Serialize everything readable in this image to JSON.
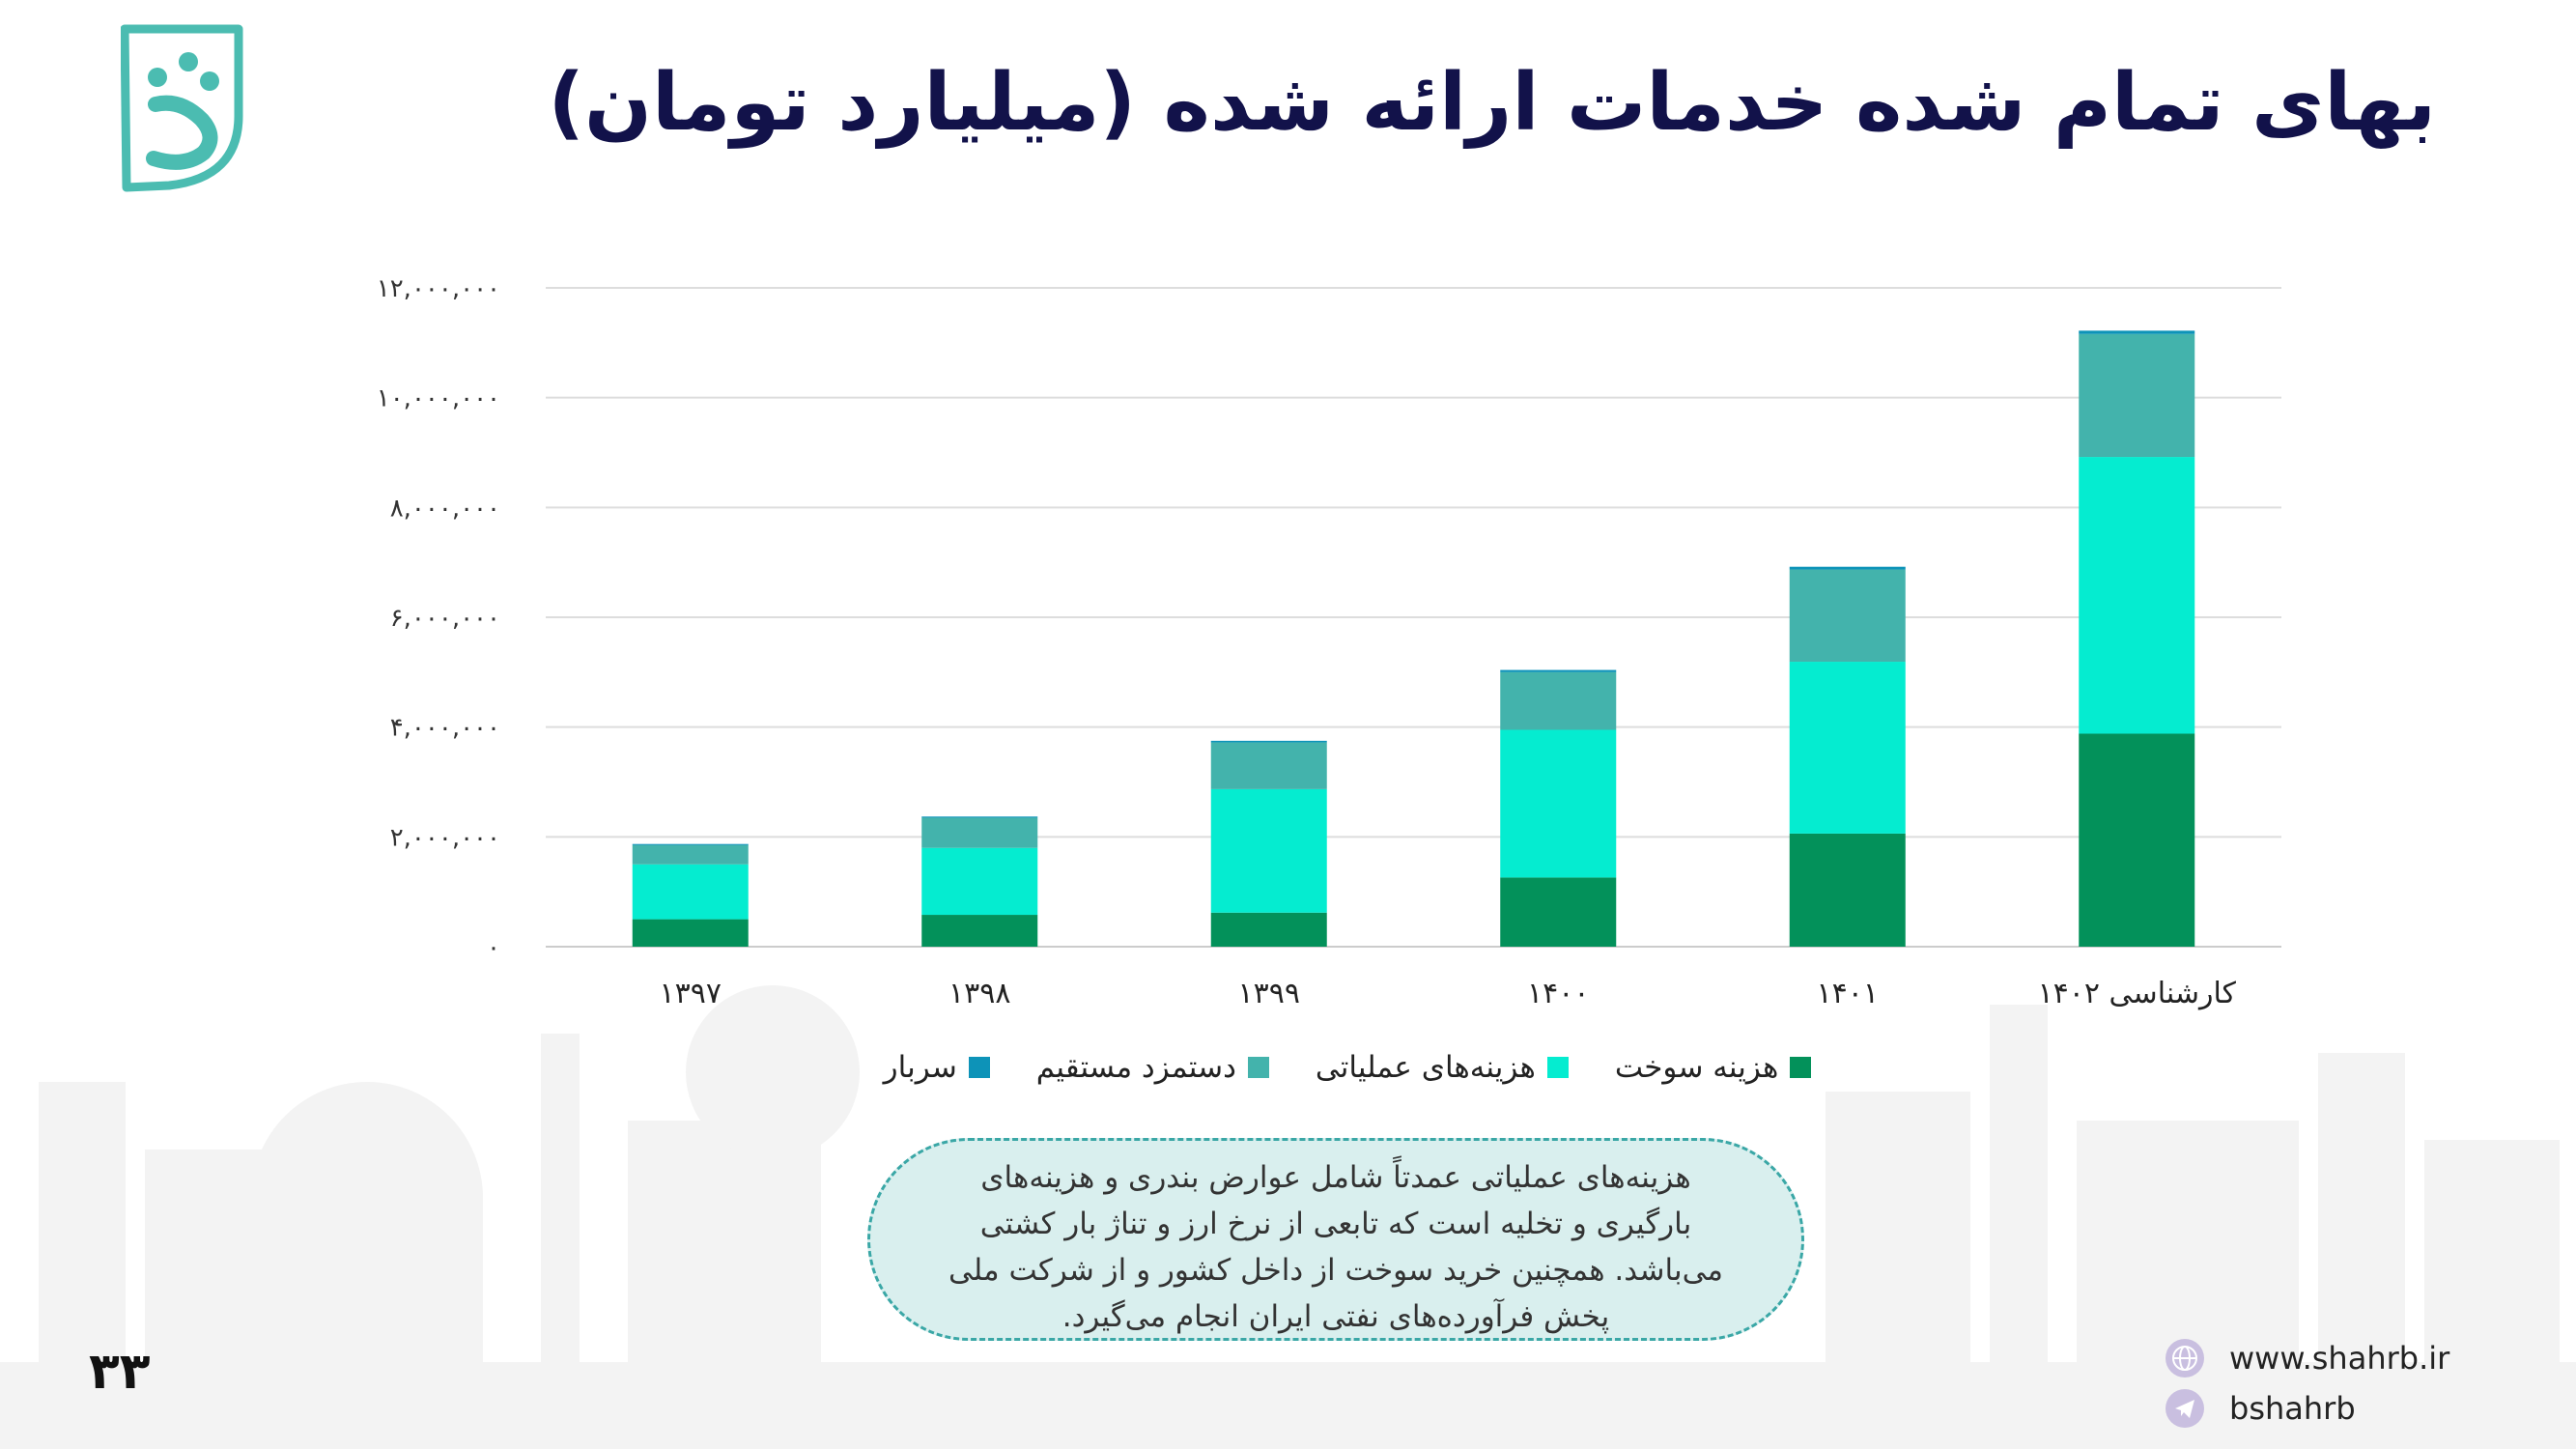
{
  "title": "بهای تمام شده خدمات ارائه شده (میلیارد تومان)",
  "chart_data": {
    "type": "bar",
    "stacked": true,
    "categories": [
      "۱۳۹۷",
      "۱۳۹۸",
      "۱۳۹۹",
      "۱۴۰۰",
      "۱۴۰۱",
      "کارشناسی ۱۴۰۲"
    ],
    "series": [
      {
        "name": "هزینه سوخت",
        "color": "#03915a",
        "values": [
          500000,
          580000,
          620000,
          1260000,
          2060000,
          3880000
        ]
      },
      {
        "name": "هزینه‌های عملیاتی",
        "color": "#05ecd0",
        "values": [
          1000000,
          1220000,
          2250000,
          2690000,
          3130000,
          5040000
        ]
      },
      {
        "name": "دستمزد مستقیم",
        "color": "#43b3ac",
        "values": [
          350000,
          550000,
          850000,
          1050000,
          1680000,
          2240000
        ]
      },
      {
        "name": "سربار",
        "color": "#0d93b8",
        "values": [
          20000,
          20000,
          30000,
          40000,
          50000,
          60000
        ]
      }
    ],
    "ylim": [
      0,
      12000000
    ],
    "yticks": [
      0,
      2000000,
      4000000,
      6000000,
      8000000,
      10000000,
      12000000
    ],
    "ytick_labels": [
      "۰",
      "۲,۰۰۰,۰۰۰",
      "۴,۰۰۰,۰۰۰",
      "۶,۰۰۰,۰۰۰",
      "۸,۰۰۰,۰۰۰",
      "۱۰,۰۰۰,۰۰۰",
      "۱۲,۰۰۰,۰۰۰"
    ],
    "grid": true,
    "legend_position": "bottom"
  },
  "legend": [
    {
      "label": "هزینه سوخت",
      "color": "#03915a"
    },
    {
      "label": "هزینه‌های عملیاتی",
      "color": "#05ecd0"
    },
    {
      "label": "دستمزد مستقیم",
      "color": "#43b3ac"
    },
    {
      "label": "سربار",
      "color": "#0d93b8"
    }
  ],
  "note_lines": [
    "هزینه‌های عملیاتی عمدتاً شامل عوارض بندری و هزینه‌های",
    "بارگیری و تخلیه است که تابعی از نرخ ارز و تناژ بار کشتی",
    "می‌باشد. همچنین خرید سوخت از داخل کشور و از شرکت ملی",
    "پخش فرآورده‌های نفتی ایران انجام می‌گیرد."
  ],
  "page_number": "۳۳",
  "contact": {
    "website": "www.shahrb.ir",
    "telegram": "bshahrb"
  },
  "colors": {
    "brand": "#4bbcb1",
    "title": "#12124a",
    "grid": "#dddddd"
  },
  "icons": [
    "logo-icon",
    "globe-icon",
    "telegram-icon"
  ]
}
